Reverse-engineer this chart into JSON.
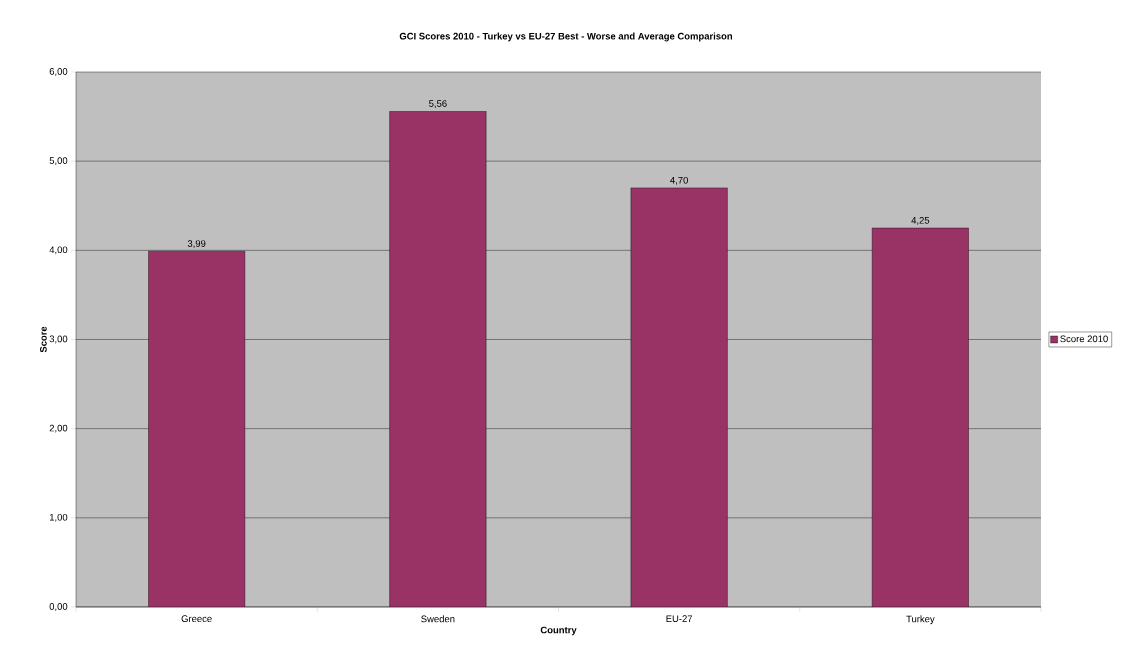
{
  "chart_data": {
    "type": "bar",
    "title": "GCI Scores 2010 - Turkey vs EU-27 Best - Worse and Average Comparison",
    "xlabel": "Country",
    "ylabel": "Score",
    "categories": [
      "Greece",
      "Sweden",
      "EU-27",
      "Turkey"
    ],
    "series": [
      {
        "name": "Score 2010",
        "color": "#993366",
        "values": [
          3.99,
          5.56,
          4.7,
          4.25
        ],
        "value_labels": [
          "3,99",
          "5,56",
          "4,70",
          "4,25"
        ]
      }
    ],
    "ylim": [
      0,
      6
    ],
    "yticks": [
      {
        "value": 0,
        "label": "0,00"
      },
      {
        "value": 1,
        "label": "1,00"
      },
      {
        "value": 2,
        "label": "2,00"
      },
      {
        "value": 3,
        "label": "3,00"
      },
      {
        "value": 4,
        "label": "4,00"
      },
      {
        "value": 5,
        "label": "5,00"
      },
      {
        "value": 6,
        "label": "6,00"
      }
    ],
    "grid": "y",
    "legend": "right"
  }
}
